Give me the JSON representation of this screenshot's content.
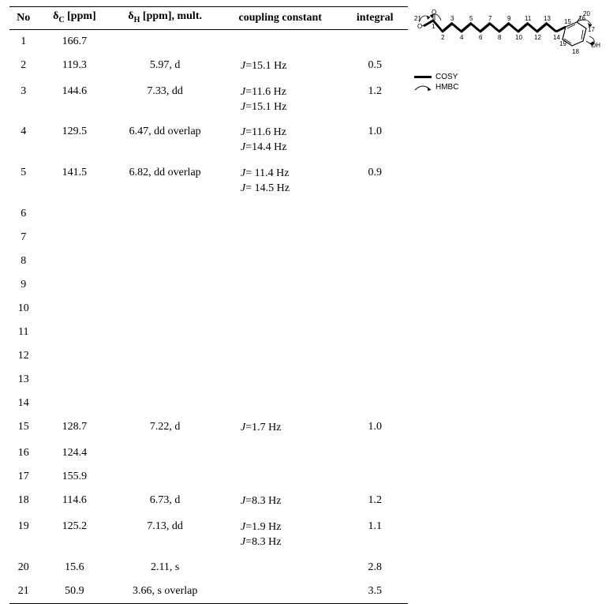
{
  "headers": {
    "no": "No",
    "dc": "δ",
    "dc_sub": "C",
    "dc_unit": " [ppm]",
    "dh": "δ",
    "dh_sub": "H",
    "dh_unit": " [ppm], mult.",
    "cc": "coupling constant",
    "int": "integral"
  },
  "rows": [
    {
      "no": "1",
      "dc": "166.7",
      "dh": "",
      "cc": "",
      "int": ""
    },
    {
      "no": "2",
      "dc": "119.3",
      "dh": "5.97, d",
      "cc": "J=15.1 Hz",
      "int": "0.5"
    },
    {
      "no": "3",
      "dc": "144.6",
      "dh": "7.33, dd",
      "cc": "J=11.6 Hz|J=15.1 Hz",
      "int": "1.2"
    },
    {
      "no": "4",
      "dc": "129.5",
      "dh": "6.47, dd overlap",
      "cc": "J=11.6 Hz|J=14.4 Hz",
      "int": "1.0"
    },
    {
      "no": "5",
      "dc": "141.5",
      "dh": "6.82, dd overlap",
      "cc": "J= 11.4 Hz|J= 14.5 Hz",
      "int": "0.9"
    },
    {
      "no": "6",
      "dc": "",
      "dh": "",
      "cc": "",
      "int": ""
    },
    {
      "no": "7",
      "dc": "",
      "dh": "",
      "cc": "",
      "int": ""
    },
    {
      "no": "8",
      "dc": "",
      "dh": "",
      "cc": "",
      "int": ""
    },
    {
      "no": "9",
      "dc": "",
      "dh": "",
      "cc": "",
      "int": ""
    },
    {
      "no": "10",
      "dc": "",
      "dh": "",
      "cc": "",
      "int": ""
    },
    {
      "no": "11",
      "dc": "",
      "dh": "",
      "cc": "",
      "int": ""
    },
    {
      "no": "12",
      "dc": "",
      "dh": "",
      "cc": "",
      "int": ""
    },
    {
      "no": "13",
      "dc": "",
      "dh": "",
      "cc": "",
      "int": ""
    },
    {
      "no": "14",
      "dc": "",
      "dh": "",
      "cc": "",
      "int": ""
    },
    {
      "no": "15",
      "dc": "128.7",
      "dh": "7.22, d",
      "cc": "J=1.7 Hz",
      "int": "1.0"
    },
    {
      "no": "16",
      "dc": "124.4",
      "dh": "",
      "cc": "",
      "int": ""
    },
    {
      "no": "17",
      "dc": "155.9",
      "dh": "",
      "cc": "",
      "int": ""
    },
    {
      "no": "18",
      "dc": "114.6",
      "dh": "6.73, d",
      "cc": "J=8.3 Hz",
      "int": "1.2"
    },
    {
      "no": "19",
      "dc": "125.2",
      "dh": "7.13, dd",
      "cc": "J=1.9 Hz|J=8.3 Hz",
      "int": "1.1"
    },
    {
      "no": "20",
      "dc": "15.6",
      "dh": "2.11, s",
      "cc": "",
      "int": "2.8"
    },
    {
      "no": "21",
      "dc": "50.9",
      "dh": "3.66, s overlap",
      "cc": "",
      "int": "3.5"
    }
  ],
  "diagram": {
    "atom_labels": [
      "1",
      "2",
      "3",
      "4",
      "5",
      "6",
      "7",
      "8",
      "9",
      "10",
      "11",
      "12",
      "13",
      "14",
      "15",
      "16",
      "17",
      "18",
      "19",
      "20",
      "21",
      "O",
      "O",
      "OH"
    ],
    "legend": {
      "cosy": "COSY",
      "hmbc": "HMBC"
    },
    "colors": {
      "bond": "#000000",
      "thick": "#000000",
      "bg": "#ffffff"
    },
    "chain_thick_width": 2.8,
    "bond_width": 0.8
  }
}
